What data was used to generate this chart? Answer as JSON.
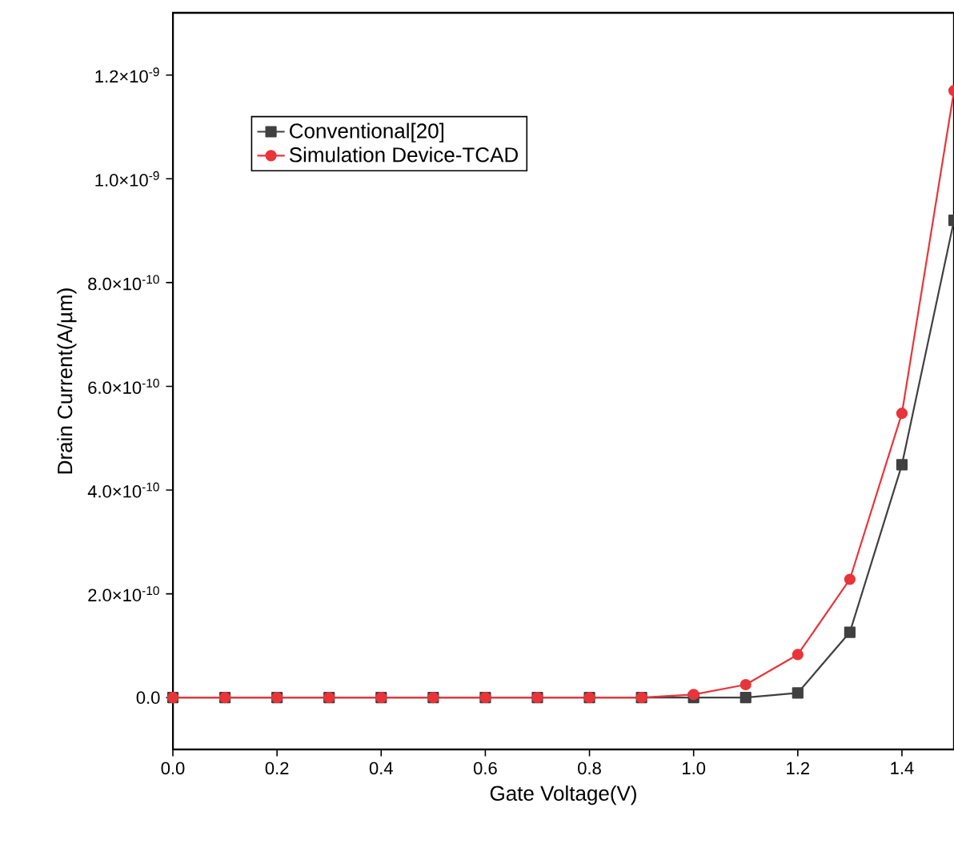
{
  "chart_data": {
    "type": "line",
    "xlabel": "Gate Voltage(V)",
    "ylabel": "Drain Current(A/µm)",
    "x": [
      0,
      0.1,
      0.2,
      0.3,
      0.4,
      0.5,
      0.6,
      0.7,
      0.8,
      0.9,
      1.0,
      1.1,
      1.2,
      1.3,
      1.4,
      1.5
    ],
    "series": [
      {
        "name": "Conventional[20]",
        "color": "#404040",
        "marker": "square",
        "values": [
          0,
          0,
          0,
          0,
          0,
          0,
          0,
          0,
          0,
          0,
          0,
          0,
          9e-12,
          1.26e-10,
          4.49e-10,
          9.2e-10
        ]
      },
      {
        "name": "Simulation Device-TCAD",
        "color": "#e8353a",
        "marker": "circle",
        "values": [
          0,
          0,
          0,
          0,
          0,
          0,
          0,
          0,
          0,
          0,
          6e-12,
          2.5e-11,
          8.3e-11,
          2.28e-10,
          5.48e-10,
          1.17e-09
        ]
      }
    ],
    "xlim": [
      0,
      1.5
    ],
    "ylim": [
      -1e-10,
      1.32e-09
    ],
    "xticks": [
      {
        "value": 0,
        "label": "0.0"
      },
      {
        "value": 0.2,
        "label": "0.2"
      },
      {
        "value": 0.4,
        "label": "0.4"
      },
      {
        "value": 0.6,
        "label": "0.6"
      },
      {
        "value": 0.8,
        "label": "0.8"
      },
      {
        "value": 1.0,
        "label": "1.0"
      },
      {
        "value": 1.2,
        "label": "1.2"
      },
      {
        "value": 1.4,
        "label": "1.4"
      }
    ],
    "yticks": [
      {
        "value": 0,
        "label": "0.0"
      },
      {
        "value": 2e-10,
        "label": "2.0×10$^{-10}$"
      },
      {
        "value": 4e-10,
        "label": "4.0×10$^{-10}$"
      },
      {
        "value": 6e-10,
        "label": "6.0×10$^{-10}$"
      },
      {
        "value": 8e-10,
        "label": "8.0×10$^{-10}$"
      },
      {
        "value": 1e-09,
        "label": "1.0×10$^{-9}$"
      },
      {
        "value": 1.2e-09,
        "label": "1.2×10$^{-9}$"
      }
    ],
    "legend": "top left",
    "grid": false,
    "line_style": "solid"
  }
}
